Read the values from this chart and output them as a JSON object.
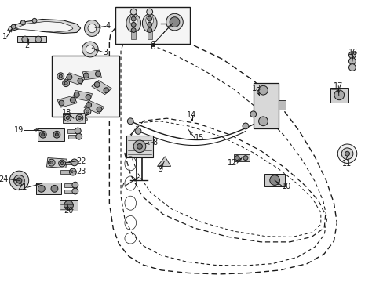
{
  "bg_color": "#ffffff",
  "line_color": "#1a1a1a",
  "figsize": [
    4.89,
    3.6
  ],
  "dpi": 100,
  "door_outer": {
    "x": [
      0.285,
      0.285,
      0.295,
      0.31,
      0.335,
      0.37,
      0.42,
      0.49,
      0.57,
      0.65,
      0.73,
      0.8,
      0.845,
      0.87,
      0.878,
      0.87,
      0.85,
      0.82,
      0.78,
      0.73,
      0.66,
      0.58,
      0.5,
      0.42,
      0.36,
      0.32,
      0.3,
      0.288,
      0.285
    ],
    "y": [
      0.15,
      0.72,
      0.81,
      0.865,
      0.908,
      0.938,
      0.958,
      0.968,
      0.972,
      0.968,
      0.958,
      0.935,
      0.9,
      0.855,
      0.79,
      0.72,
      0.64,
      0.555,
      0.465,
      0.375,
      0.285,
      0.21,
      0.158,
      0.118,
      0.095,
      0.09,
      0.1,
      0.12,
      0.15
    ]
  },
  "door_inner": {
    "x": [
      0.315,
      0.315,
      0.325,
      0.345,
      0.375,
      0.42,
      0.485,
      0.56,
      0.635,
      0.71,
      0.775,
      0.82,
      0.845,
      0.852,
      0.842,
      0.82,
      0.785,
      0.74,
      0.68,
      0.608,
      0.53,
      0.455,
      0.392,
      0.348,
      0.323,
      0.315
    ],
    "y": [
      0.18,
      0.695,
      0.775,
      0.83,
      0.873,
      0.905,
      0.928,
      0.94,
      0.942,
      0.935,
      0.912,
      0.876,
      0.832,
      0.775,
      0.712,
      0.642,
      0.562,
      0.48,
      0.395,
      0.315,
      0.248,
      0.195,
      0.158,
      0.135,
      0.148,
      0.18
    ]
  },
  "window_outer": {
    "x": [
      0.325,
      0.34,
      0.37,
      0.425,
      0.505,
      0.595,
      0.68,
      0.755,
      0.812,
      0.845,
      0.848,
      0.83,
      0.795,
      0.745,
      0.68,
      0.6,
      0.515,
      0.435,
      0.375,
      0.34,
      0.325
    ],
    "y": [
      0.545,
      0.618,
      0.695,
      0.76,
      0.808,
      0.84,
      0.858,
      0.858,
      0.84,
      0.808,
      0.762,
      0.712,
      0.658,
      0.598,
      0.535,
      0.478,
      0.438,
      0.42,
      0.428,
      0.478,
      0.545
    ]
  },
  "window_inner": {
    "x": [
      0.34,
      0.358,
      0.392,
      0.448,
      0.525,
      0.61,
      0.692,
      0.762,
      0.812,
      0.836,
      0.836,
      0.816,
      0.778,
      0.725,
      0.658,
      0.578,
      0.495,
      0.418,
      0.362,
      0.342,
      0.34
    ],
    "y": [
      0.545,
      0.612,
      0.682,
      0.742,
      0.788,
      0.82,
      0.838,
      0.84,
      0.825,
      0.796,
      0.755,
      0.708,
      0.655,
      0.598,
      0.54,
      0.485,
      0.448,
      0.43,
      0.435,
      0.48,
      0.545
    ]
  }
}
